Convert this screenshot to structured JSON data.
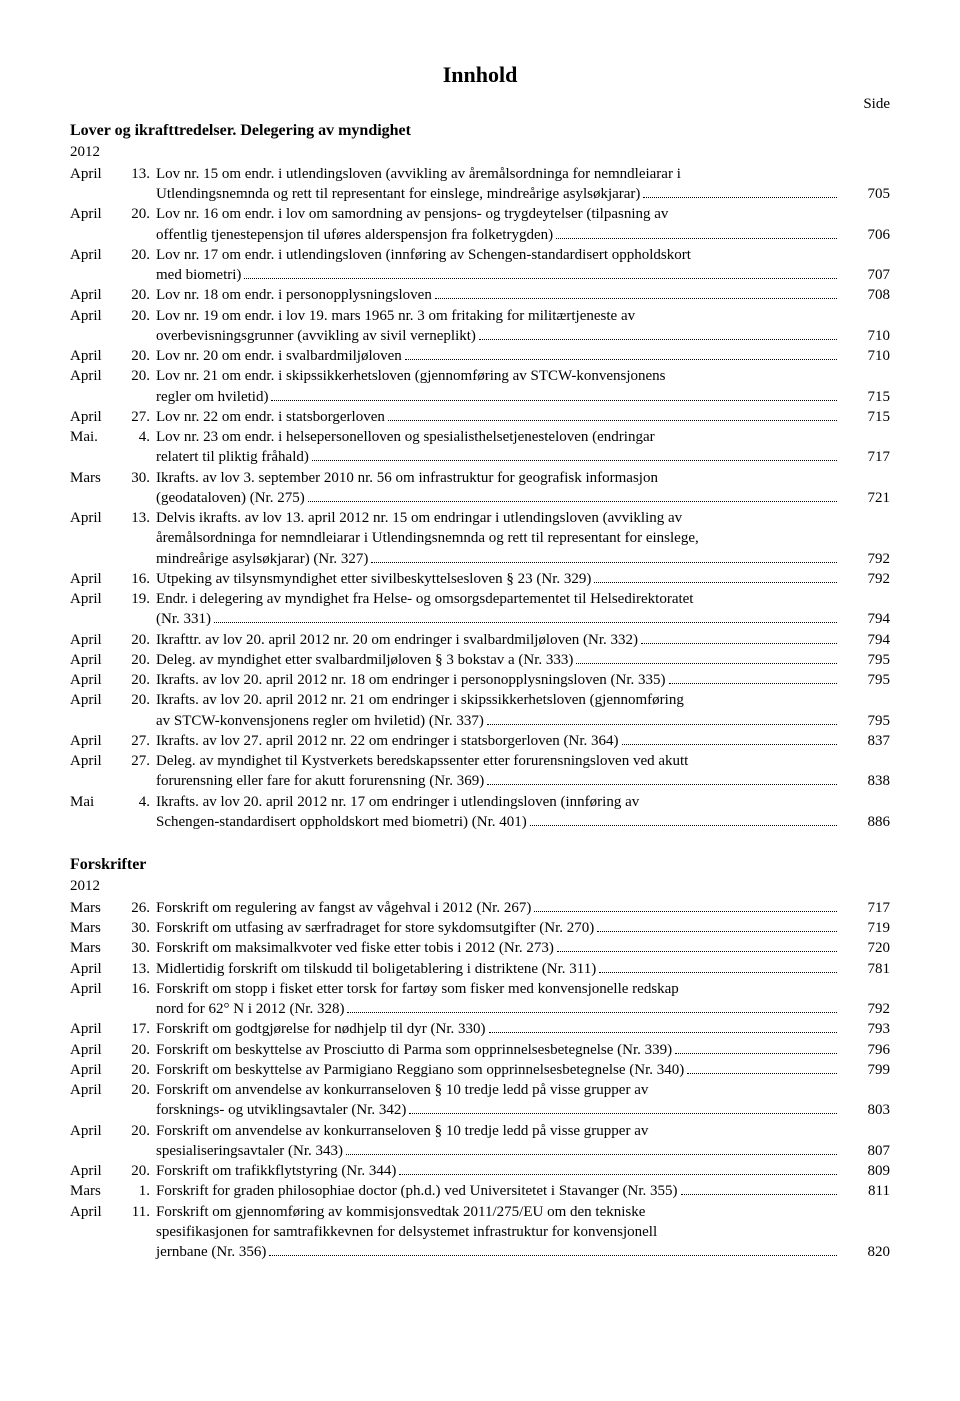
{
  "title": "Innhold",
  "side_label": "Side",
  "sections": [
    {
      "heading": "Lover og ikrafttredelser. Delegering av myndighet",
      "year": "2012",
      "entries": [
        {
          "month": "April",
          "day": "13.",
          "lines": [
            "Lov nr. 15 om endr. i utlendingsloven (avvikling av åremålsordninga for nemndleiarar i"
          ],
          "last": "Utlendingsnemnda og rett til representant for einslege, mindreårige asylsøkjarar)",
          "page": "705"
        },
        {
          "month": "April",
          "day": "20.",
          "lines": [
            "Lov nr. 16 om endr. i lov om samordning av pensjons- og trygdeytelser (tilpasning av"
          ],
          "last": "offentlig tjenestepensjon til uføres alderspensjon fra folketrygden)",
          "page": "706"
        },
        {
          "month": "April",
          "day": "20.",
          "lines": [
            "Lov nr. 17 om endr. i utlendingsloven (innføring av Schengen-standardisert oppholdskort"
          ],
          "last": "med biometri)",
          "page": "707"
        },
        {
          "month": "April",
          "day": "20.",
          "lines": [],
          "last": "Lov nr. 18 om endr. i personopplysningsloven",
          "page": "708"
        },
        {
          "month": "April",
          "day": "20.",
          "lines": [
            "Lov nr. 19 om endr. i lov 19. mars 1965 nr. 3 om fritaking for militærtjeneste av"
          ],
          "last": "overbevisningsgrunner (avvikling av sivil verneplikt)",
          "page": "710"
        },
        {
          "month": "April",
          "day": "20.",
          "lines": [],
          "last": "Lov nr. 20 om endr. i svalbardmiljøloven",
          "page": "710"
        },
        {
          "month": "April",
          "day": "20.",
          "lines": [
            "Lov nr. 21 om endr. i skipssikkerhetsloven (gjennomføring av STCW-konvensjonens"
          ],
          "last": "regler om hviletid)",
          "page": "715"
        },
        {
          "month": "April",
          "day": "27.",
          "lines": [],
          "last": "Lov nr. 22 om endr. i statsborgerloven",
          "page": "715"
        },
        {
          "month": "Mai.",
          "day": "4.",
          "lines": [
            "Lov nr. 23 om endr. i helsepersonelloven og spesialisthelsetjenesteloven (endringar"
          ],
          "last": "relatert til pliktig fråhald)",
          "page": "717"
        },
        {
          "month": "Mars",
          "day": "30.",
          "lines": [
            "Ikrafts. av lov 3. september 2010 nr. 56 om infrastruktur for geografisk informasjon"
          ],
          "last": "(geodataloven) (Nr. 275)",
          "page": "721"
        },
        {
          "month": "April",
          "day": "13.",
          "lines": [
            "Delvis ikrafts. av lov 13. april 2012 nr. 15 om endringar i utlendingsloven (avvikling av",
            "åremålsordninga for nemndleiarar i Utlendingsnemnda og rett til representant for einslege,"
          ],
          "last": "mindreårige asylsøkjarar) (Nr. 327)",
          "page": "792"
        },
        {
          "month": "April",
          "day": "16.",
          "lines": [],
          "last": "Utpeking av tilsynsmyndighet etter sivilbeskyttelsesloven § 23 (Nr. 329)",
          "page": "792"
        },
        {
          "month": "April",
          "day": "19.",
          "lines": [
            "Endr. i delegering av myndighet fra Helse- og omsorgsdepartementet til Helsedirektoratet"
          ],
          "last": "(Nr. 331)",
          "page": "794"
        },
        {
          "month": "April",
          "day": "20.",
          "lines": [],
          "last": "Ikrafttr. av lov 20. april 2012 nr. 20 om endringer i svalbardmiljøloven (Nr. 332)",
          "page": "794"
        },
        {
          "month": "April",
          "day": "20.",
          "lines": [],
          "last": "Deleg. av myndighet etter svalbardmiljøloven § 3 bokstav a (Nr. 333)",
          "page": "795"
        },
        {
          "month": "April",
          "day": "20.",
          "lines": [],
          "last": "Ikrafts. av lov 20. april 2012 nr. 18 om endringer i personopplysningsloven (Nr. 335)",
          "page": "795"
        },
        {
          "month": "April",
          "day": "20.",
          "lines": [
            "Ikrafts. av lov 20. april 2012 nr. 21 om endringer i skipssikkerhetsloven (gjennomføring"
          ],
          "last": "av STCW-konvensjonens regler om hviletid) (Nr. 337)",
          "page": "795"
        },
        {
          "month": "April",
          "day": "27.",
          "lines": [],
          "last": "Ikrafts. av lov 27. april 2012 nr. 22 om endringer i statsborgerloven (Nr. 364)",
          "page": "837"
        },
        {
          "month": "April",
          "day": "27.",
          "lines": [
            "Deleg. av myndighet til Kystverkets beredskapssenter etter forurensningsloven ved akutt"
          ],
          "last": "forurensning eller fare for akutt forurensning (Nr. 369)",
          "page": "838"
        },
        {
          "month": "Mai",
          "day": "4.",
          "lines": [
            "Ikrafts. av lov 20. april 2012 nr. 17 om endringer i utlendingsloven (innføring av"
          ],
          "last": "Schengen-standardisert oppholdskort med biometri) (Nr. 401)",
          "page": "886"
        }
      ]
    },
    {
      "heading": "Forskrifter",
      "year": "2012",
      "entries": [
        {
          "month": "Mars",
          "day": "26.",
          "lines": [],
          "last": "Forskrift om regulering av fangst av vågehval i 2012 (Nr. 267)",
          "page": "717"
        },
        {
          "month": "Mars",
          "day": "30.",
          "lines": [],
          "last": "Forskrift om utfasing av særfradraget for store sykdomsutgifter (Nr. 270)",
          "page": "719"
        },
        {
          "month": "Mars",
          "day": "30.",
          "lines": [],
          "last": "Forskrift om maksimalkvoter ved fiske etter tobis i 2012 (Nr. 273)",
          "page": "720"
        },
        {
          "month": "April",
          "day": "13.",
          "lines": [],
          "last": "Midlertidig forskrift om tilskudd til boligetablering i distriktene (Nr. 311)",
          "page": "781"
        },
        {
          "month": "April",
          "day": "16.",
          "lines": [
            "Forskrift om stopp i fisket etter torsk for fartøy som fisker med konvensjonelle redskap"
          ],
          "last": "nord for 62° N i 2012 (Nr. 328)",
          "page": "792"
        },
        {
          "month": "April",
          "day": "17.",
          "lines": [],
          "last": "Forskrift om godtgjørelse for nødhjelp til dyr (Nr. 330)",
          "page": "793"
        },
        {
          "month": "April",
          "day": "20.",
          "lines": [],
          "last": "Forskrift om beskyttelse av Prosciutto di Parma som opprinnelsesbetegnelse (Nr. 339)",
          "page": "796"
        },
        {
          "month": "April",
          "day": "20.",
          "lines": [],
          "last": "Forskrift om beskyttelse av Parmigiano Reggiano som opprinnelsesbetegnelse (Nr. 340)",
          "page": "799"
        },
        {
          "month": "April",
          "day": "20.",
          "lines": [
            "Forskrift om anvendelse av konkurranseloven § 10 tredje ledd på visse grupper av"
          ],
          "last": "forsknings- og utviklingsavtaler (Nr. 342)",
          "page": "803"
        },
        {
          "month": "April",
          "day": "20.",
          "lines": [
            "Forskrift om anvendelse av konkurranseloven § 10 tredje ledd på visse grupper av"
          ],
          "last": "spesialiseringsavtaler (Nr. 343)",
          "page": "807"
        },
        {
          "month": "April",
          "day": "20.",
          "lines": [],
          "last": "Forskrift om trafikkflytstyring (Nr. 344)",
          "page": "809"
        },
        {
          "month": "Mars",
          "day": "1.",
          "lines": [],
          "last": "Forskrift for graden philosophiae doctor (ph.d.) ved Universitetet i Stavanger (Nr. 355)",
          "page": "811"
        },
        {
          "month": "April",
          "day": "11.",
          "lines": [
            "Forskrift om gjennomføring av kommisjonsvedtak 2011/275/EU om den tekniske",
            "spesifikasjonen for samtrafikkevnen for delsystemet infrastruktur for konvensjonell"
          ],
          "last": "jernbane (Nr. 356)",
          "page": "820"
        }
      ]
    }
  ]
}
